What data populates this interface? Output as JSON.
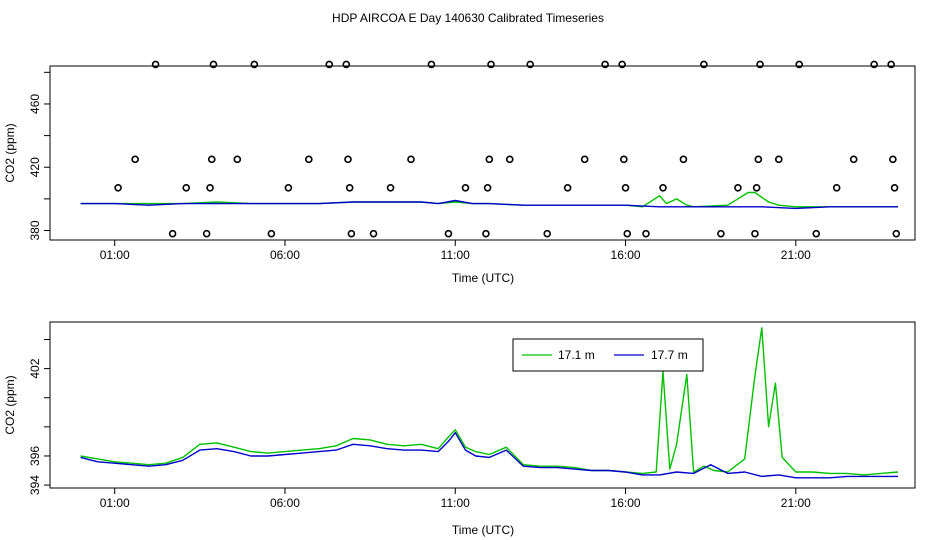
{
  "page": {
    "title": "HDP AIRCOA E  Day 140630  Calibrated Timeseries"
  },
  "colors": {
    "green": "#00c000",
    "blue": "#0000cc",
    "axis": "#000000"
  },
  "chart_data": [
    {
      "type": "line",
      "xlabel": "Time (UTC)",
      "ylabel": "CO2 (ppm)",
      "xlim": [
        -0.9,
        24.5
      ],
      "ylim": [
        374,
        484
      ],
      "x_ticks": [
        1,
        6,
        11,
        16,
        21
      ],
      "x_tick_labels": [
        "01:00",
        "06:00",
        "11:00",
        "16:00",
        "21:00"
      ],
      "y_ticks": [
        380,
        420,
        460
      ],
      "y_minor_ticks": [
        380,
        400,
        420,
        440,
        460,
        480
      ],
      "y_tick_labels": [
        "380",
        "420",
        "460"
      ],
      "grid": false,
      "series": [
        {
          "color": "green",
          "x": [
            0.0,
            1.0,
            2.0,
            3.0,
            4.0,
            5.0,
            6.0,
            7.0,
            8.0,
            9.0,
            10.0,
            10.5,
            11.0,
            11.5,
            12.0,
            13.0,
            14.0,
            15.0,
            16.0,
            16.5,
            17.0,
            17.2,
            17.5,
            17.8,
            18.0,
            19.0,
            19.6,
            19.8,
            20.2,
            20.5,
            21.0,
            22.0,
            23.0,
            24.0
          ],
          "y": [
            397,
            397,
            397,
            397,
            398,
            397,
            397,
            397,
            398,
            398,
            398,
            397,
            398,
            397,
            397,
            396,
            396,
            396,
            396,
            395,
            402,
            397,
            400,
            396,
            395,
            396,
            404,
            404,
            398,
            396,
            395,
            395,
            395,
            395
          ]
        },
        {
          "color": "blue",
          "x": [
            0.0,
            1.0,
            2.0,
            3.0,
            4.0,
            5.0,
            6.0,
            7.0,
            8.0,
            9.0,
            10.0,
            10.5,
            11.0,
            11.5,
            12.0,
            13.0,
            14.0,
            15.0,
            16.0,
            17.0,
            18.0,
            19.0,
            20.0,
            21.0,
            22.0,
            23.0,
            24.0
          ],
          "y": [
            397,
            397,
            396,
            397,
            397,
            397,
            397,
            397,
            398,
            398,
            398,
            397,
            399,
            397,
            397,
            396,
            396,
            396,
            396,
            395,
            395,
            395,
            395,
            394,
            395,
            395,
            395
          ]
        }
      ],
      "cal_points": [
        {
          "x": 1.1,
          "y": 407
        },
        {
          "x": 1.6,
          "y": 425
        },
        {
          "x": 2.2,
          "y": 485
        },
        {
          "x": 2.7,
          "y": 378
        },
        {
          "x": 3.1,
          "y": 407
        },
        {
          "x": 3.7,
          "y": 378
        },
        {
          "x": 3.8,
          "y": 407
        },
        {
          "x": 3.85,
          "y": 425
        },
        {
          "x": 3.9,
          "y": 485
        },
        {
          "x": 4.6,
          "y": 425
        },
        {
          "x": 5.1,
          "y": 485
        },
        {
          "x": 5.6,
          "y": 378
        },
        {
          "x": 6.1,
          "y": 407
        },
        {
          "x": 6.7,
          "y": 425
        },
        {
          "x": 7.3,
          "y": 485
        },
        {
          "x": 7.8,
          "y": 485
        },
        {
          "x": 7.85,
          "y": 425
        },
        {
          "x": 7.9,
          "y": 407
        },
        {
          "x": 7.95,
          "y": 378
        },
        {
          "x": 8.6,
          "y": 378
        },
        {
          "x": 9.1,
          "y": 407
        },
        {
          "x": 9.7,
          "y": 425
        },
        {
          "x": 10.3,
          "y": 485
        },
        {
          "x": 10.8,
          "y": 378
        },
        {
          "x": 11.3,
          "y": 407
        },
        {
          "x": 11.9,
          "y": 378
        },
        {
          "x": 11.95,
          "y": 407
        },
        {
          "x": 12.0,
          "y": 425
        },
        {
          "x": 12.05,
          "y": 485
        },
        {
          "x": 12.6,
          "y": 425
        },
        {
          "x": 13.2,
          "y": 485
        },
        {
          "x": 13.7,
          "y": 378
        },
        {
          "x": 14.3,
          "y": 407
        },
        {
          "x": 14.8,
          "y": 425
        },
        {
          "x": 15.4,
          "y": 485
        },
        {
          "x": 15.9,
          "y": 485
        },
        {
          "x": 15.95,
          "y": 425
        },
        {
          "x": 16.0,
          "y": 407
        },
        {
          "x": 16.05,
          "y": 378
        },
        {
          "x": 16.6,
          "y": 378
        },
        {
          "x": 17.1,
          "y": 407
        },
        {
          "x": 17.7,
          "y": 425
        },
        {
          "x": 18.3,
          "y": 485
        },
        {
          "x": 18.8,
          "y": 378
        },
        {
          "x": 19.3,
          "y": 407
        },
        {
          "x": 19.8,
          "y": 378
        },
        {
          "x": 19.85,
          "y": 407
        },
        {
          "x": 19.9,
          "y": 425
        },
        {
          "x": 19.95,
          "y": 485
        },
        {
          "x": 20.5,
          "y": 425
        },
        {
          "x": 21.1,
          "y": 485
        },
        {
          "x": 21.6,
          "y": 378
        },
        {
          "x": 22.2,
          "y": 407
        },
        {
          "x": 22.7,
          "y": 425
        },
        {
          "x": 23.3,
          "y": 485
        },
        {
          "x": 23.8,
          "y": 485
        },
        {
          "x": 23.85,
          "y": 425
        },
        {
          "x": 23.9,
          "y": 407
        },
        {
          "x": 23.95,
          "y": 378
        }
      ]
    },
    {
      "type": "line",
      "xlabel": "Time (UTC)",
      "ylabel": "CO2 (ppm)",
      "xlim": [
        -0.9,
        24.5
      ],
      "ylim": [
        393.8,
        405.2
      ],
      "x_ticks": [
        1,
        6,
        11,
        16,
        21
      ],
      "x_tick_labels": [
        "01:00",
        "06:00",
        "11:00",
        "16:00",
        "21:00"
      ],
      "y_ticks": [
        394,
        396,
        402
      ],
      "y_minor_ticks": [
        394,
        396,
        398,
        400,
        402,
        404
      ],
      "y_tick_labels": [
        "394",
        "396",
        "402"
      ],
      "grid": false,
      "legend": {
        "position": "top-right",
        "entries": [
          {
            "label": "17.1 m",
            "color": "green"
          },
          {
            "label": "17.7 m",
            "color": "blue"
          }
        ]
      },
      "series": [
        {
          "name": "17.1 m",
          "color": "green",
          "x": [
            0.0,
            0.5,
            1.0,
            1.5,
            2.0,
            2.5,
            3.0,
            3.5,
            4.0,
            4.5,
            5.0,
            5.5,
            6.0,
            6.5,
            7.0,
            7.5,
            8.0,
            8.5,
            9.0,
            9.5,
            10.0,
            10.5,
            10.8,
            11.0,
            11.3,
            11.6,
            12.0,
            12.5,
            13.0,
            13.5,
            14.0,
            14.5,
            15.0,
            15.5,
            16.0,
            16.5,
            16.9,
            17.1,
            17.3,
            17.5,
            17.8,
            18.0,
            18.3,
            18.6,
            19.0,
            19.5,
            19.8,
            20.0,
            20.2,
            20.4,
            20.6,
            21.0,
            21.5,
            22.0,
            22.5,
            23.0,
            23.5,
            24.0
          ],
          "y": [
            396.0,
            395.8,
            395.6,
            395.5,
            395.4,
            395.5,
            395.9,
            396.8,
            396.9,
            396.6,
            396.3,
            396.2,
            396.3,
            396.4,
            396.5,
            396.7,
            397.2,
            397.1,
            396.8,
            396.7,
            396.8,
            396.5,
            397.3,
            397.8,
            396.6,
            396.3,
            396.1,
            396.6,
            395.4,
            395.3,
            395.3,
            395.2,
            395.0,
            395.0,
            394.9,
            394.8,
            394.9,
            401.8,
            395.1,
            396.8,
            401.6,
            394.9,
            395.3,
            395.0,
            394.9,
            395.8,
            401.5,
            404.8,
            398.0,
            401.0,
            395.9,
            394.9,
            394.9,
            394.8,
            394.8,
            394.7,
            394.8,
            394.9
          ]
        },
        {
          "name": "17.7 m",
          "color": "blue",
          "x": [
            0.0,
            0.5,
            1.0,
            1.5,
            2.0,
            2.5,
            3.0,
            3.5,
            4.0,
            4.5,
            5.0,
            5.5,
            6.0,
            6.5,
            7.0,
            7.5,
            8.0,
            8.5,
            9.0,
            9.5,
            10.0,
            10.5,
            10.8,
            11.0,
            11.3,
            11.6,
            12.0,
            12.5,
            13.0,
            13.5,
            14.0,
            14.5,
            15.0,
            15.5,
            16.0,
            16.5,
            17.0,
            17.5,
            18.0,
            18.5,
            19.0,
            19.5,
            20.0,
            20.5,
            21.0,
            21.5,
            22.0,
            22.5,
            23.0,
            23.5,
            24.0
          ],
          "y": [
            395.9,
            395.6,
            395.5,
            395.4,
            395.3,
            395.4,
            395.7,
            396.4,
            396.5,
            396.3,
            396.0,
            396.0,
            396.1,
            396.2,
            396.3,
            396.4,
            396.8,
            396.7,
            396.5,
            396.4,
            396.4,
            396.3,
            397.0,
            397.6,
            396.4,
            396.0,
            395.9,
            396.4,
            395.3,
            395.2,
            395.2,
            395.1,
            395.0,
            395.0,
            394.9,
            394.7,
            394.7,
            394.9,
            394.8,
            395.4,
            394.8,
            394.9,
            394.6,
            394.7,
            394.5,
            394.5,
            394.5,
            394.6,
            394.6,
            394.6,
            394.6
          ]
        }
      ]
    }
  ]
}
